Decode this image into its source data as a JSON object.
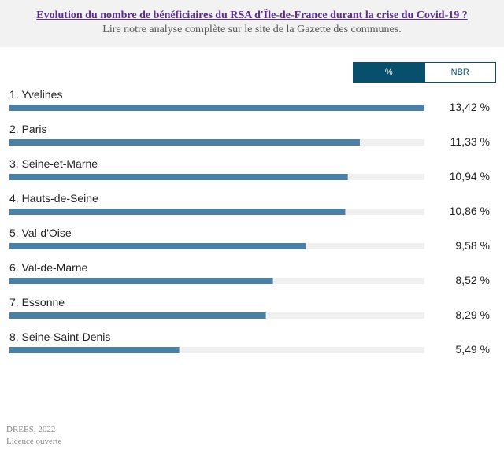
{
  "header": {
    "title": "Evolution du nombre de bénéficiaires du RSA d'Île-de-France durant la crise du Covid-19 ?",
    "subtitle": "Lire notre analyse complète sur le site de la Gazette des communes."
  },
  "toggle": {
    "percent_label": "%",
    "number_label": "NBR",
    "active": "%"
  },
  "colors": {
    "bar": "#4a7fa7",
    "track": "#f0f0f0",
    "toggle_active": "#074f6c"
  },
  "chart_data": {
    "type": "bar",
    "orientation": "horizontal",
    "categories": [
      "1. Yvelines",
      "2. Paris",
      "3. Seine-et-Marne",
      "4. Hauts-de-Seine",
      "5. Val-d'Oise",
      "6. Val-de-Marne",
      "7. Essonne",
      "8. Seine-Saint-Denis"
    ],
    "values": [
      13.42,
      11.33,
      10.94,
      10.86,
      9.58,
      8.52,
      8.29,
      5.49
    ],
    "value_labels": [
      "13,42 %",
      "11,33 %",
      "10,94 %",
      "10,86 %",
      "9,58 %",
      "8,52 %",
      "8,29 %",
      "5,49 %"
    ],
    "xlim": [
      0,
      13.42
    ],
    "unit": "%"
  },
  "footer": {
    "source": "DREES, 2022",
    "license": "Licence ouverte"
  }
}
